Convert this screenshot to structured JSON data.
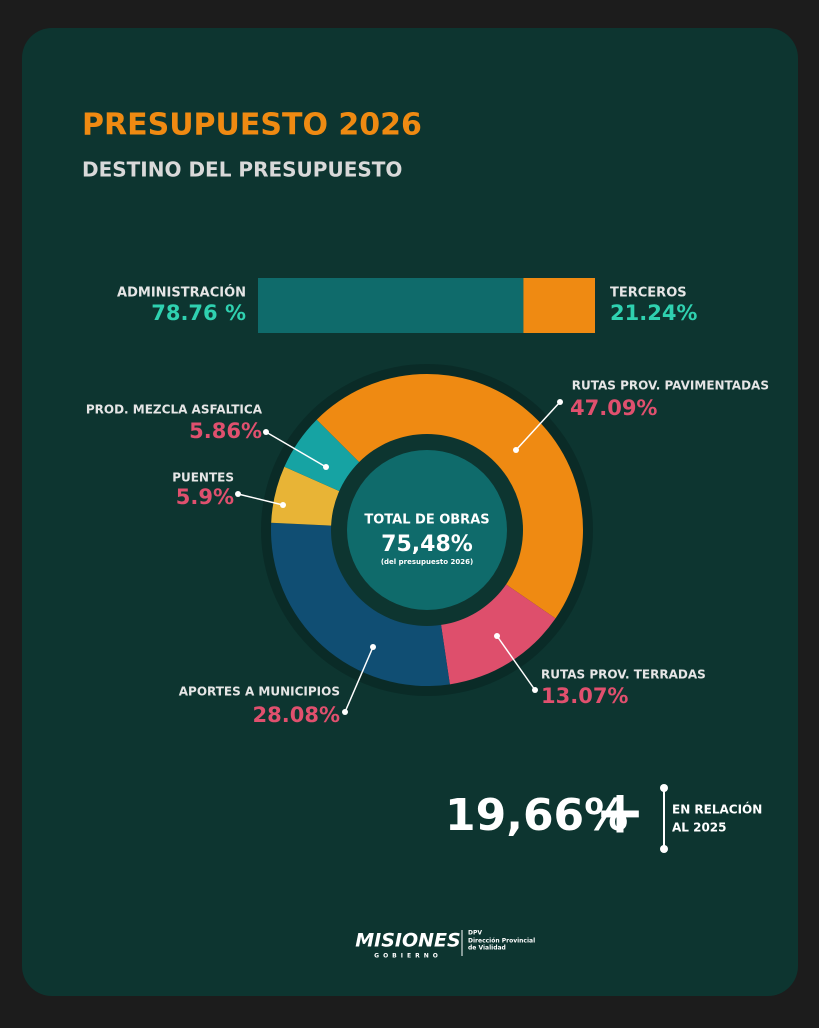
{
  "header": {
    "title": "PRESUPUESTO 2026",
    "subtitle": "DESTINO DEL PRESUPUESTO"
  },
  "chart_data": [
    {
      "type": "stacked-bar",
      "series": [
        {
          "name": "ADMINISTRACIÓN",
          "color": "#0f6b6b",
          "values": [
            78.76
          ],
          "value_labels": [
            "78.76 %"
          ]
        },
        {
          "name": "TERCEROS",
          "color": "#ef8a12",
          "values": [
            21.24
          ],
          "value_labels": [
            "21.24%"
          ]
        }
      ]
    },
    {
      "type": "donut",
      "categories": [
        "RUTAS PROV. PAVIMENTADAS",
        "RUTAS PROV. TERRADAS",
        "APORTES A MUNICIPIOS",
        "PUENTES",
        "PROD. MEZCLA ASFALTICA"
      ],
      "values": [
        47.09,
        13.07,
        28.08,
        5.9,
        5.86
      ],
      "value_labels": [
        "47.09%",
        "13.07%",
        "28.08%",
        "5.9%",
        "5.86%"
      ],
      "colors": [
        "#ef8a12",
        "#de4f6c",
        "#104e73",
        "#e8b436",
        "#16a3a3"
      ],
      "center": {
        "label": "TOTAL DE OBRAS",
        "value": "75,48%",
        "note": "(del presupuesto 2026)"
      }
    }
  ],
  "highlight": {
    "value": "19,66%",
    "sign": "+",
    "text": [
      "EN RELACIÓN",
      "AL 2025"
    ]
  },
  "footer": {
    "brand": "MISIONES",
    "brand_sub": "GOBIERNO",
    "org": "DPV",
    "org_name": [
      "Dirección Provincial",
      "de Vialidad"
    ]
  }
}
